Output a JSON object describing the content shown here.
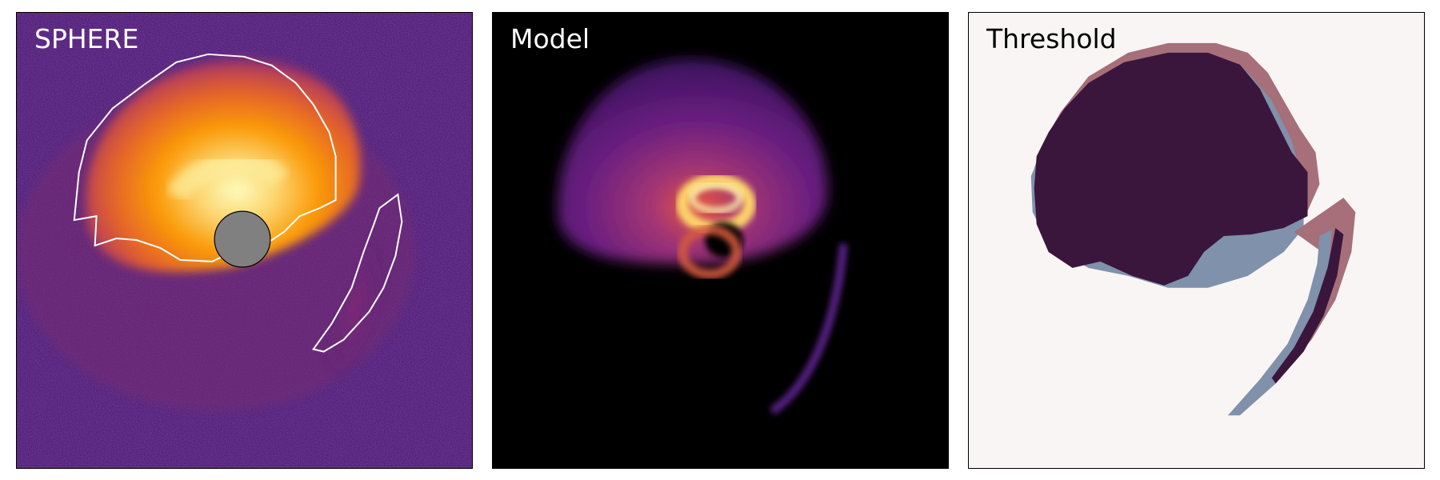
{
  "panels": [
    {
      "label": "SPHERE"
    },
    {
      "label": "Model"
    },
    {
      "label": "Threshold"
    }
  ],
  "colors": {
    "sphere_bg": "#4a1e73",
    "disk_core": "#fcfdbf",
    "disk_mid": "#fb9b06",
    "disk_outer": "#c73f4c",
    "mask": "#808080",
    "contour": "#ffffff",
    "model_bg": "#000000",
    "model_purple": "#6a1f80",
    "threshold_bg": "#f9f5f4",
    "threshold_dark": "#3a163c",
    "threshold_rose": "#a66f7a",
    "threshold_blue": "#7f91ab"
  }
}
